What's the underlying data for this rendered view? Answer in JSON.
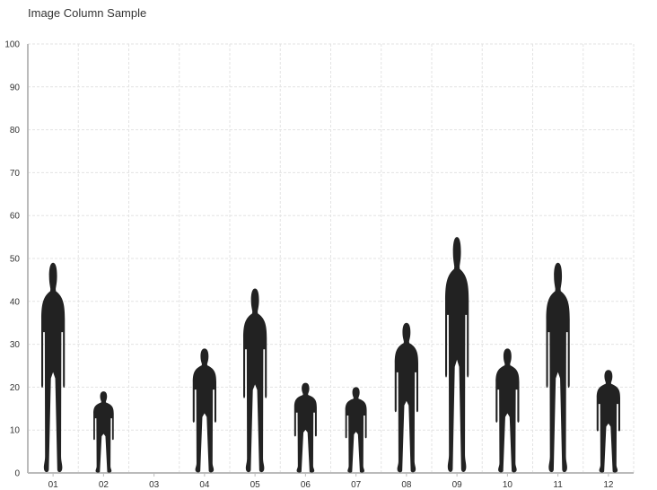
{
  "chart_data": {
    "type": "bar",
    "title": "Image Column Sample",
    "categories": [
      "01",
      "02",
      "03",
      "04",
      "05",
      "06",
      "07",
      "08",
      "09",
      "10",
      "11",
      "12"
    ],
    "values": [
      49,
      19,
      0,
      29,
      43,
      21,
      20,
      35,
      55,
      29,
      49,
      24
    ],
    "ylim": [
      0,
      100
    ],
    "yticks": [
      0,
      10,
      20,
      30,
      40,
      50,
      60,
      70,
      80,
      90,
      100
    ],
    "grid": true,
    "marker_icon": "person-silhouette-icon",
    "colors": {
      "figure": "#222222",
      "grid": "#e3e3e3",
      "axis": "#bbbbbb"
    }
  }
}
